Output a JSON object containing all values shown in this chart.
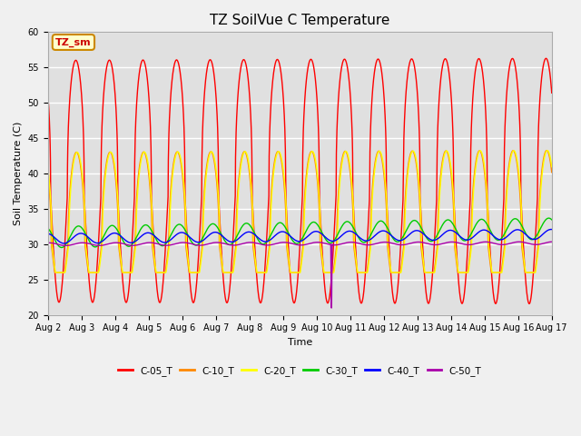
{
  "title": "TZ SoilVue C Temperature",
  "xlabel": "Time",
  "ylabel": "Soil Temperature (C)",
  "ylim": [
    20,
    60
  ],
  "yticks": [
    20,
    25,
    30,
    35,
    40,
    45,
    50,
    55,
    60
  ],
  "xlim": [
    0,
    15
  ],
  "xtick_labels": [
    "Aug 2",
    "Aug 3",
    "Aug 4",
    "Aug 5",
    "Aug 6",
    "Aug 7",
    "Aug 8",
    "Aug 9",
    "Aug 10",
    "Aug 11",
    "Aug 12",
    "Aug 13",
    "Aug 14",
    "Aug 15",
    "Aug 16",
    "Aug 17"
  ],
  "xtick_positions": [
    0,
    1,
    2,
    3,
    4,
    5,
    6,
    7,
    8,
    9,
    10,
    11,
    12,
    13,
    14,
    15
  ],
  "series": [
    {
      "name": "C-05_T",
      "color": "#ff0000"
    },
    {
      "name": "C-10_T",
      "color": "#ff8800"
    },
    {
      "name": "C-20_T",
      "color": "#ffff00"
    },
    {
      "name": "C-30_T",
      "color": "#00cc00"
    },
    {
      "name": "C-40_T",
      "color": "#0000ff"
    },
    {
      "name": "C-50_T",
      "color": "#aa00aa"
    }
  ],
  "fig_bg_color": "#f0f0f0",
  "plot_bg_color": "#e0e0e0",
  "annotation_text": "TZ_sm",
  "annotation_color": "#cc0000",
  "annotation_bg": "#ffffcc",
  "annotation_border": "#cc8800",
  "grid_color": "#ffffff",
  "linewidth": 1.0,
  "title_fontsize": 11,
  "axis_fontsize": 8,
  "tick_fontsize": 7
}
